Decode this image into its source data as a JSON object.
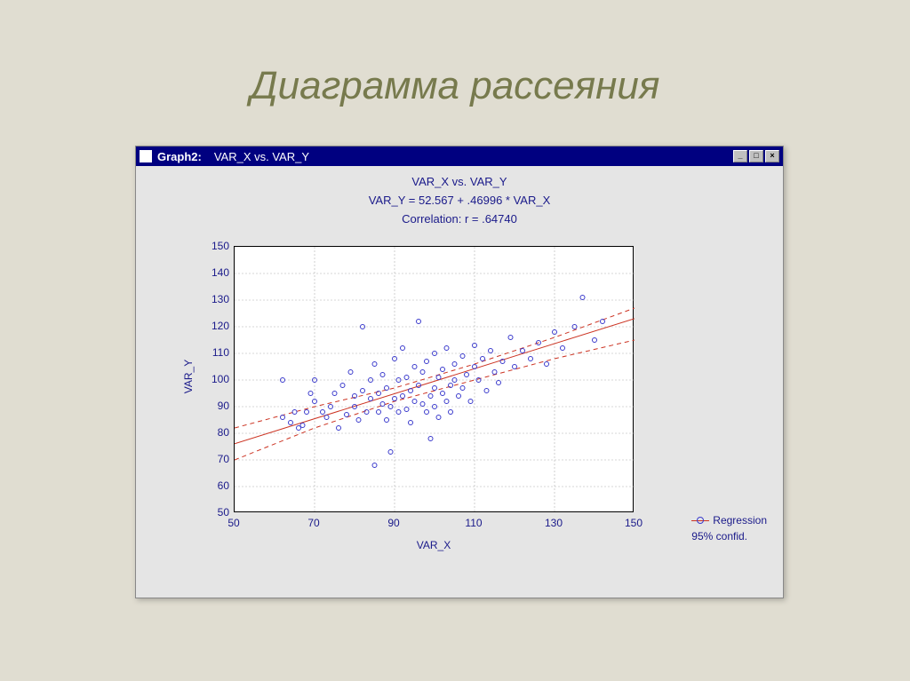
{
  "slide": {
    "title": "Диаграмма рассеяния"
  },
  "window": {
    "title_prefix": "Graph2:",
    "title_rest": "VAR_X vs.   VAR_Y",
    "buttons": {
      "min": "_",
      "max": "□",
      "close": "×"
    }
  },
  "chart": {
    "type": "scatter",
    "title1": "VAR_X vs.  VAR_Y",
    "title2": "VAR_Y = 52.567 + .46996 * VAR_X",
    "title3": "Correlation: r = .64740",
    "xlabel": "VAR_X",
    "ylabel": "VAR_Y",
    "xlim": [
      50,
      150
    ],
    "ylim": [
      50,
      150
    ],
    "xticks": [
      50,
      70,
      90,
      110,
      130,
      150
    ],
    "yticks": [
      50,
      60,
      70,
      80,
      90,
      100,
      110,
      120,
      130,
      140,
      150
    ],
    "grid_color": "#b0b0b0",
    "background": "#ffffff",
    "axis_color": "#000000",
    "text_color": "#1a1a8a",
    "title_fontsize": 13,
    "label_fontsize": 12,
    "tick_fontsize": 12,
    "marker": {
      "shape": "circle-open",
      "size": 5,
      "stroke": "#3a3acc",
      "fill": "none"
    },
    "regression_line": {
      "color": "#cc3322",
      "width": 1,
      "style": "solid",
      "x_range": [
        50,
        150
      ],
      "intercept": 52.567,
      "slope": 0.46996
    },
    "confidence_band": {
      "color": "#cc3322",
      "width": 1,
      "style": "dashed",
      "upper": [
        [
          50,
          82
        ],
        [
          70,
          90
        ],
        [
          90,
          97
        ],
        [
          110,
          106
        ],
        [
          130,
          116
        ],
        [
          150,
          127
        ]
      ],
      "lower": [
        [
          50,
          70
        ],
        [
          70,
          82
        ],
        [
          90,
          92
        ],
        [
          110,
          100
        ],
        [
          130,
          108
        ],
        [
          150,
          115
        ]
      ]
    },
    "legend": {
      "line1": "Regression",
      "line2": "95% confid."
    },
    "scatter_points": [
      [
        62,
        86
      ],
      [
        62,
        100
      ],
      [
        64,
        84
      ],
      [
        65,
        88
      ],
      [
        66,
        82
      ],
      [
        67,
        83
      ],
      [
        68,
        88
      ],
      [
        69,
        95
      ],
      [
        70,
        92
      ],
      [
        70,
        100
      ],
      [
        72,
        88
      ],
      [
        73,
        86
      ],
      [
        74,
        90
      ],
      [
        75,
        95
      ],
      [
        76,
        82
      ],
      [
        77,
        98
      ],
      [
        78,
        87
      ],
      [
        79,
        103
      ],
      [
        80,
        90
      ],
      [
        80,
        94
      ],
      [
        81,
        85
      ],
      [
        82,
        120
      ],
      [
        82,
        96
      ],
      [
        83,
        88
      ],
      [
        84,
        93
      ],
      [
        84,
        100
      ],
      [
        85,
        68
      ],
      [
        85,
        106
      ],
      [
        86,
        88
      ],
      [
        86,
        95
      ],
      [
        87,
        91
      ],
      [
        87,
        102
      ],
      [
        88,
        85
      ],
      [
        88,
        97
      ],
      [
        89,
        73
      ],
      [
        89,
        90
      ],
      [
        90,
        93
      ],
      [
        90,
        108
      ],
      [
        91,
        88
      ],
      [
        91,
        100
      ],
      [
        92,
        94
      ],
      [
        92,
        112
      ],
      [
        93,
        89
      ],
      [
        93,
        101
      ],
      [
        94,
        84
      ],
      [
        94,
        96
      ],
      [
        95,
        92
      ],
      [
        95,
        105
      ],
      [
        96,
        122
      ],
      [
        96,
        98
      ],
      [
        97,
        91
      ],
      [
        97,
        103
      ],
      [
        98,
        88
      ],
      [
        98,
        107
      ],
      [
        99,
        78
      ],
      [
        99,
        94
      ],
      [
        100,
        97
      ],
      [
        100,
        110
      ],
      [
        100,
        90
      ],
      [
        101,
        101
      ],
      [
        101,
        86
      ],
      [
        102,
        104
      ],
      [
        102,
        95
      ],
      [
        103,
        92
      ],
      [
        103,
        112
      ],
      [
        104,
        98
      ],
      [
        104,
        88
      ],
      [
        105,
        106
      ],
      [
        105,
        100
      ],
      [
        106,
        94
      ],
      [
        107,
        109
      ],
      [
        107,
        97
      ],
      [
        108,
        102
      ],
      [
        109,
        92
      ],
      [
        110,
        105
      ],
      [
        110,
        113
      ],
      [
        111,
        100
      ],
      [
        112,
        108
      ],
      [
        113,
        96
      ],
      [
        114,
        111
      ],
      [
        115,
        103
      ],
      [
        116,
        99
      ],
      [
        117,
        107
      ],
      [
        119,
        116
      ],
      [
        120,
        105
      ],
      [
        122,
        111
      ],
      [
        124,
        108
      ],
      [
        126,
        114
      ],
      [
        128,
        106
      ],
      [
        130,
        118
      ],
      [
        132,
        112
      ],
      [
        135,
        120
      ],
      [
        137,
        131
      ],
      [
        140,
        115
      ],
      [
        142,
        122
      ]
    ]
  }
}
